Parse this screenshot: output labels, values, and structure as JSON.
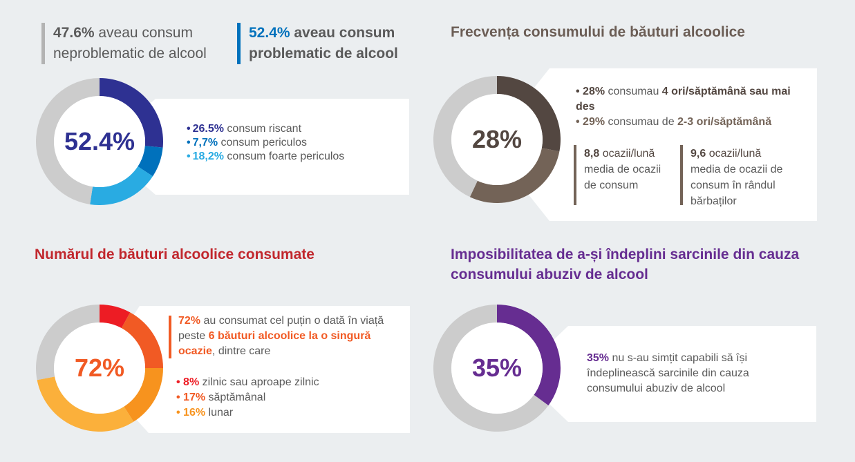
{
  "colors": {
    "background": "#ebeef0",
    "gray_ring": "#cccccc",
    "navy": "#2e3192",
    "blue": "#0071bc",
    "light_blue": "#29abe2",
    "text_gray": "#5a5a5a",
    "brown_dark": "#534741",
    "brown_light": "#736357",
    "red_title": "#c1272d",
    "red": "#ed1c24",
    "orange_red": "#f15a24",
    "orange": "#f7931e",
    "light_orange": "#fbb03b",
    "purple": "#662d91"
  },
  "section1": {
    "header_left": {
      "value": "47.6%",
      "line1_rest": " aveau consum",
      "line2": "neproblematic de alcool"
    },
    "header_right": {
      "value": "52.4%",
      "line1_rest": " aveau consum",
      "line2": "problematic de alcool"
    },
    "center_label": "52.4%",
    "bullets": [
      {
        "value": "26.5%",
        "text": " consum riscant"
      },
      {
        "value": "7,7%",
        "text": " consum periculos"
      },
      {
        "value": "18,2%",
        "text": " consum foarte periculos"
      }
    ]
  },
  "section2": {
    "title": "Frecvența consumului de băuturi alcoolice",
    "center_label": "28%",
    "bullet1": {
      "value": "28%",
      "mid": " consumau ",
      "bold": "4 ori/săptămână sau mai des"
    },
    "bullet2": {
      "value": "29%",
      "mid": " consumau de ",
      "bold": "2-3 ori/săptămână"
    },
    "stat1": {
      "value": "8,8",
      "unit": " ocazii/lună",
      "desc": "media de ocazii de consum"
    },
    "stat2": {
      "value": "9,6",
      "unit": " ocazii/lună",
      "desc": "media de ocazii de consum în rândul bărbaților"
    }
  },
  "section3": {
    "title": "Numărul de băuturi alcoolice consumate",
    "center_label": "72%",
    "intro": {
      "value": "72%",
      "text1": " au consumat cel puțin o dată în viață peste ",
      "bold": "6 băuturi alcoolice la o singură ocazie",
      "text2": ", dintre care"
    },
    "bullets": [
      {
        "value": "8%",
        "text": " zilnic sau aproape zilnic"
      },
      {
        "value": "17%",
        "text": " săptămânal"
      },
      {
        "value": "16%",
        "text": " lunar"
      }
    ]
  },
  "section4": {
    "title": "Imposibilitatea de a-și îndeplini sarcinile din cauza consumului abuziv de alcool",
    "center_label": "35%",
    "text": {
      "value": "35%",
      "rest": " nu s-au simțit capabili să își îndeplinească sarcinile din cauza consumului abuziv de alcool"
    }
  },
  "chart_data": [
    {
      "type": "pie",
      "title": "Consum problematic de alcool",
      "center_label": "52.4%",
      "slices": [
        {
          "label": "consum riscant",
          "value": 26.5,
          "color": "#2e3192"
        },
        {
          "label": "consum periculos",
          "value": 7.7,
          "color": "#0071bc"
        },
        {
          "label": "consum foarte periculos",
          "value": 18.2,
          "color": "#29abe2"
        },
        {
          "label": "consum neproblematic",
          "value": 47.6,
          "color": "#cccccc"
        }
      ]
    },
    {
      "type": "pie",
      "title": "Frecvența consumului de băuturi alcoolice",
      "center_label": "28%",
      "slices": [
        {
          "label": "4 ori/săptămână sau mai des",
          "value": 28,
          "color": "#534741"
        },
        {
          "label": "2-3 ori/săptămână",
          "value": 29,
          "color": "#736357"
        },
        {
          "label": "altele",
          "value": 43,
          "color": "#cccccc"
        }
      ]
    },
    {
      "type": "pie",
      "title": "Numărul de băuturi alcoolice consumate",
      "center_label": "72%",
      "slices": [
        {
          "label": "zilnic sau aproape zilnic",
          "value": 8,
          "color": "#ed1c24"
        },
        {
          "label": "săptămânal",
          "value": 17,
          "color": "#f15a24"
        },
        {
          "label": "lunar",
          "value": 16,
          "color": "#f7931e"
        },
        {
          "label": "mai rar",
          "value": 31,
          "color": "#fbb03b"
        },
        {
          "label": "niciodată",
          "value": 28,
          "color": "#cccccc"
        }
      ]
    },
    {
      "type": "pie",
      "title": "Imposibilitatea de a-și îndeplini sarcinile din cauza consumului abuziv de alcool",
      "center_label": "35%",
      "slices": [
        {
          "label": "nu s-au simțit capabili",
          "value": 35,
          "color": "#662d91"
        },
        {
          "label": "restul",
          "value": 65,
          "color": "#cccccc"
        }
      ]
    }
  ]
}
